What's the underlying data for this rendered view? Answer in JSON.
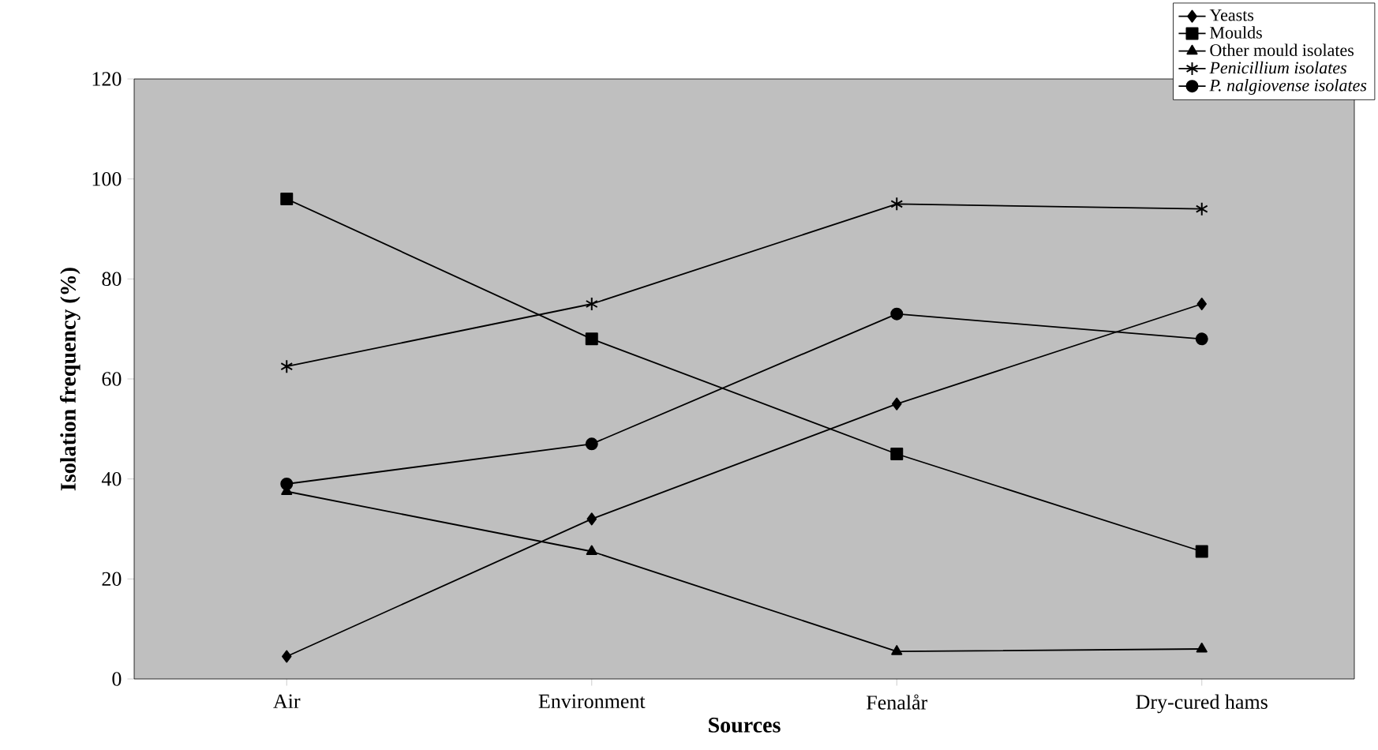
{
  "chart_data": {
    "type": "line",
    "xlabel": "Sources",
    "ylabel": "Isolation frequency (%)",
    "categories": [
      "Air",
      "Environment",
      "Fenalår",
      "Dry-cured hams"
    ],
    "ylim": [
      0,
      120
    ],
    "yticks": [
      0,
      20,
      40,
      60,
      80,
      100,
      120
    ],
    "grid": false,
    "legend": "top right",
    "series": [
      {
        "name": "Yeasts",
        "color": "#000000",
        "marker": "diamond",
        "values": [
          4.5,
          32,
          55,
          75
        ]
      },
      {
        "name": "Moulds",
        "color": "#000000",
        "marker": "square",
        "values": [
          96,
          68,
          45,
          25.5
        ]
      },
      {
        "name": "Other mould isolates",
        "color": "#000000",
        "marker": "triangle",
        "values": [
          37.5,
          25.5,
          5.5,
          6
        ]
      },
      {
        "name": "*Penicillium isolates*",
        "color": "#000000",
        "marker": "cross",
        "values": [
          62.5,
          75,
          95,
          94
        ]
      },
      {
        "name": "*P. nalgiovense isolates*",
        "color": "#000000",
        "marker": "circle",
        "values": [
          39,
          47,
          73,
          68
        ]
      }
    ]
  }
}
